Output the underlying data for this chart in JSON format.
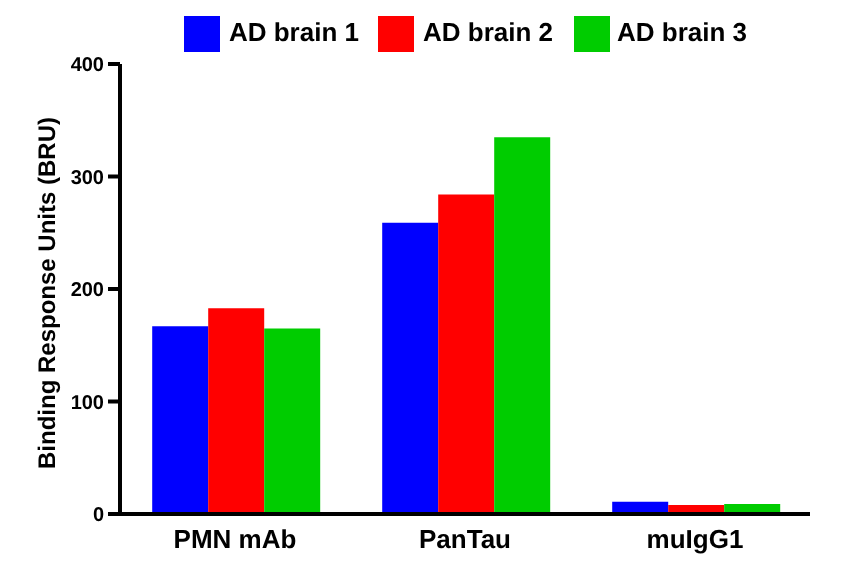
{
  "chart_data": {
    "type": "bar",
    "ylabel": "Binding Response Units (BRU)",
    "categories": [
      "PMN mAb",
      "PanTau",
      "muIgG1"
    ],
    "series": [
      {
        "name": "AD brain 1",
        "color": "#0000ff",
        "values": [
          167,
          259,
          11
        ]
      },
      {
        "name": "AD brain 2",
        "color": "#ff0000",
        "values": [
          183,
          284,
          8
        ]
      },
      {
        "name": "AD brain 3",
        "color": "#00cc00",
        "values": [
          165,
          335,
          9
        ]
      }
    ],
    "ylim": [
      0,
      400
    ],
    "yticks": [
      0,
      100,
      200,
      300,
      400
    ],
    "legend": "top"
  }
}
